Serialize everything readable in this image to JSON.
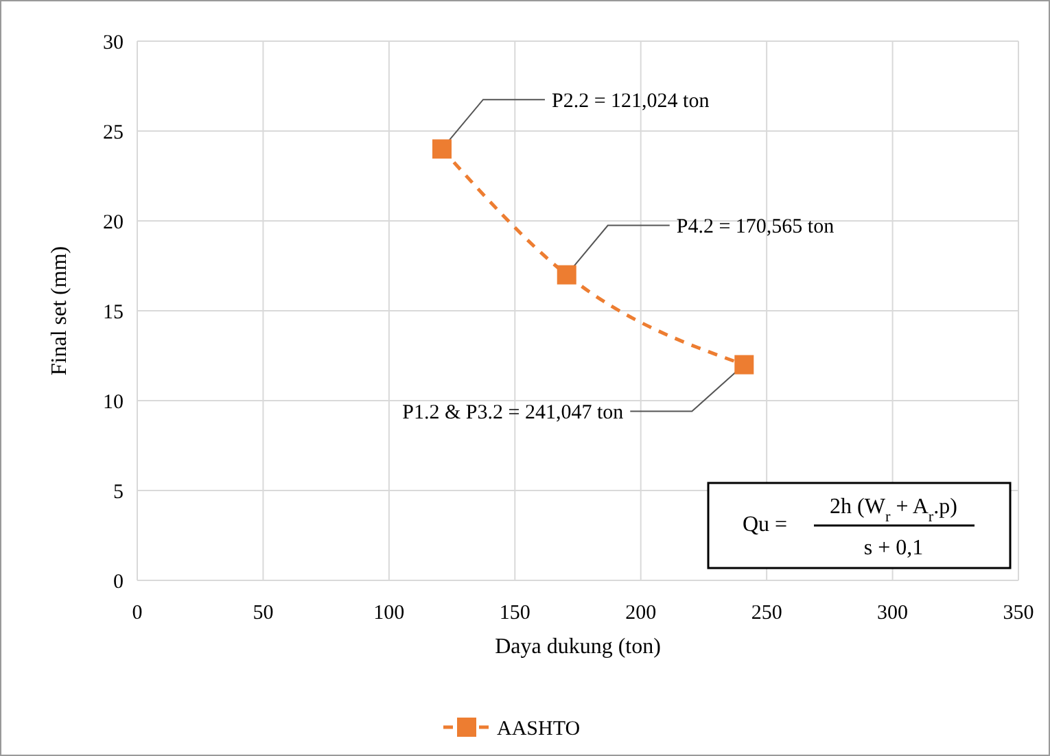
{
  "chart_data": {
    "type": "line",
    "xlabel": "Daya dukung (ton)",
    "ylabel": "Final set (mm)",
    "x": [
      121.024,
      170.565,
      241.047
    ],
    "series": [
      {
        "name": "AASHTO",
        "color": "#ed7d31",
        "values": [
          24,
          17,
          12
        ]
      }
    ],
    "xlim": [
      0,
      350
    ],
    "xticks": [
      0,
      50,
      100,
      150,
      200,
      250,
      300,
      350
    ],
    "ylim": [
      0,
      30
    ],
    "yticks": [
      0,
      5,
      10,
      15,
      20,
      25,
      30
    ],
    "grid": true,
    "legend": "bottom",
    "marker": "square",
    "line_style": "dashed",
    "annotations": [
      {
        "text": "P2.2 = 121,024 ton",
        "x": 121.024,
        "y": 24
      },
      {
        "text": "P4.2 = 170,565 ton",
        "x": 170.565,
        "y": 17
      },
      {
        "text": "P1.2 & P3.2 = 241,047 ton",
        "x": 241.047,
        "y": 12
      },
      "Qu =",
      "2h (W$_{r}$ + A$_{r}$.p)",
      "s + 0,1"
    ]
  }
}
